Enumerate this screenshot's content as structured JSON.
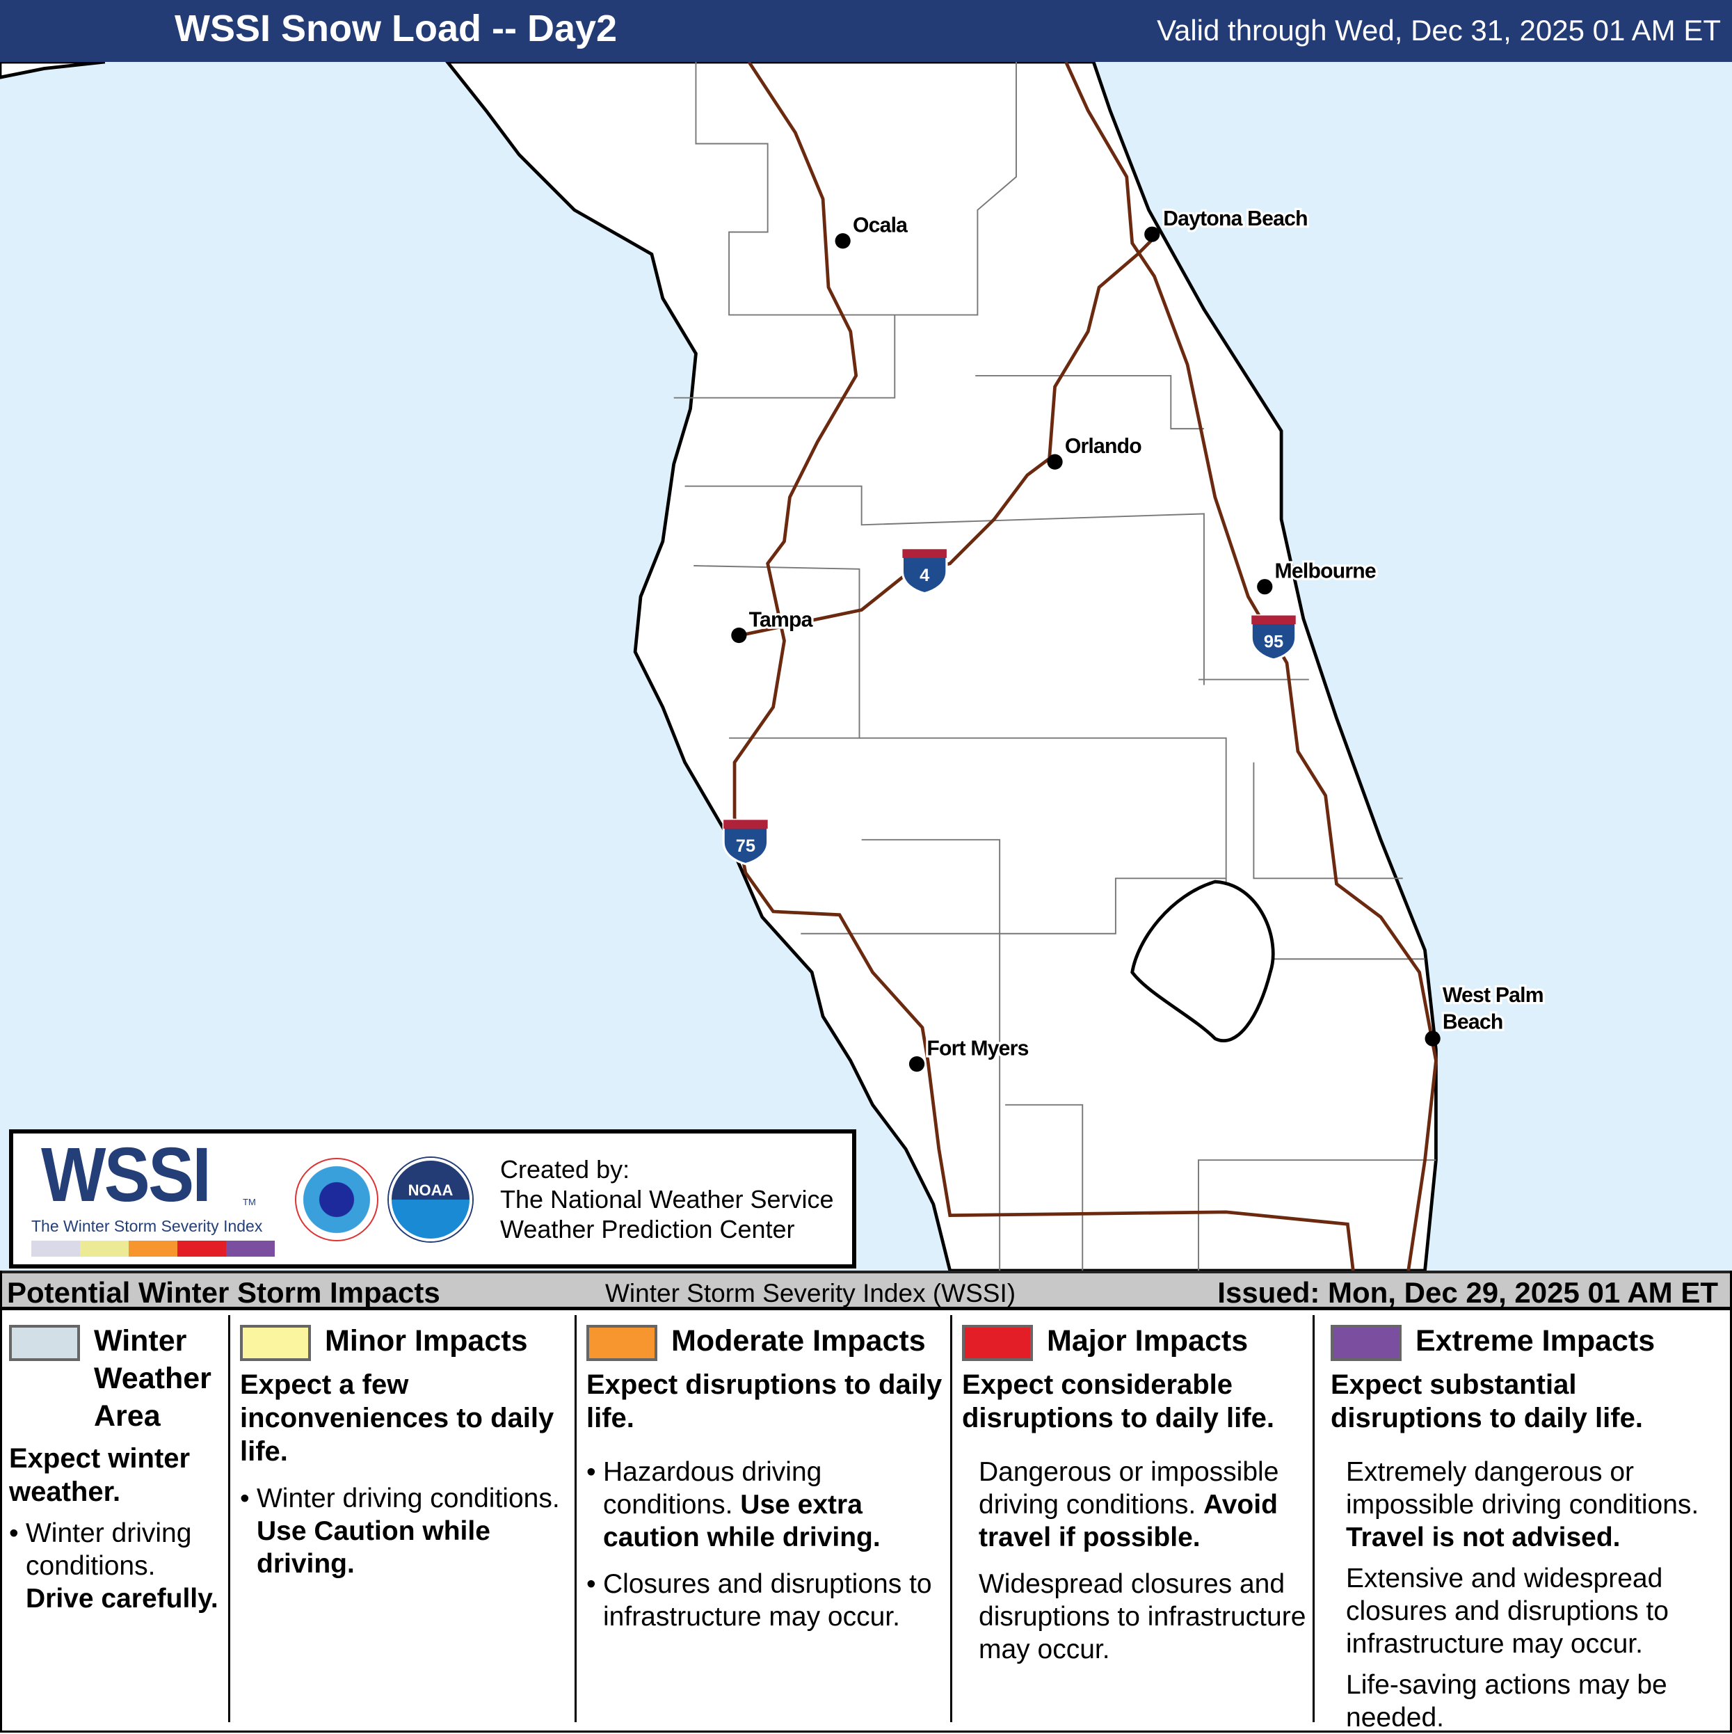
{
  "header": {
    "title": "WSSI Snow Load -- Day2",
    "valid": "Valid through Wed, Dec 31, 2025 01 AM ET"
  },
  "map": {
    "colors": {
      "ocean": "#dff0fd",
      "land": "#ffffff",
      "interstate": "#6b2a10"
    },
    "cities": [
      {
        "name": "Ocala"
      },
      {
        "name": "Daytona Beach"
      },
      {
        "name": "Orlando"
      },
      {
        "name": "Melbourne"
      },
      {
        "name": "Tampa"
      },
      {
        "name": "Fort Myers"
      },
      {
        "name": "West Palm",
        "name2": "Beach"
      }
    ],
    "shields": [
      {
        "number": "4"
      },
      {
        "number": "95"
      },
      {
        "number": "75"
      }
    ]
  },
  "logo": {
    "wssi": "WSSI",
    "tm": "TM",
    "subtitle": "The Winter Storm Severity Index",
    "created_by": "Created by:",
    "org1": "The National Weather Service",
    "org2": "Weather Prediction Center",
    "nws_icon": "nws-seal-icon",
    "noaa_icon": "noaa-seal-icon",
    "noaa_text": "NOAA"
  },
  "legend_bar": {
    "left": "Potential Winter Storm Impacts",
    "center": "Winter Storm Severity Index (WSSI)",
    "right": "Issued: Mon, Dec 29, 2025 01 AM ET"
  },
  "categories": [
    {
      "title": "Winter Weather Area",
      "color": "#d3dfe6",
      "intro": "Expect winter weather.",
      "b1": "Winter driving conditions.",
      "b1_bold": "Drive carefully."
    },
    {
      "title": "Minor Impacts",
      "color": "#fbf5a0",
      "intro": "Expect a few inconveniences to daily life.",
      "b1": "Winter driving conditions.",
      "b1_bold": "Use Caution while driving."
    },
    {
      "title": "Moderate Impacts",
      "color": "#f7962e",
      "intro": "Expect disruptions to daily life.",
      "b1": "Hazardous driving conditions.",
      "b1_bold": "Use extra caution while driving.",
      "b2": "Closures and disruptions to infrastructure may occur."
    },
    {
      "title": "Major Impacts",
      "color": "#e31e26",
      "intro": "Expect considerable disruptions to daily life.",
      "b1": "Dangerous or impossible driving conditions.",
      "b1_bold": "Avoid travel if possible.",
      "b2": "Widespread closures and disruptions to infrastructure may occur."
    },
    {
      "title": "Extreme Impacts",
      "color": "#7b4e9f",
      "intro": "Expect substantial disruptions to daily life.",
      "b1": "Extremely dangerous or impossible driving conditions.",
      "b1_bold": "Travel is not advised.",
      "b2": "Extensive and widespread closures and disruptions to infrastructure may occur.",
      "b3": "Life-saving actions may be needed."
    }
  ]
}
